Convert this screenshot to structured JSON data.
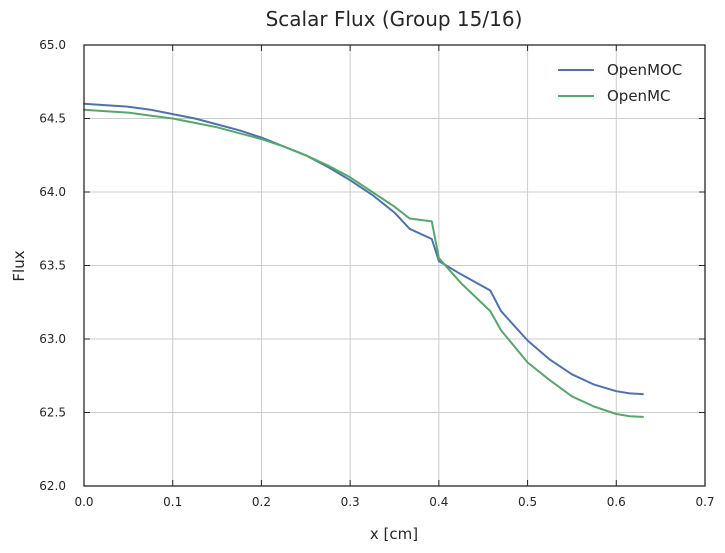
{
  "chart_data": {
    "type": "line",
    "title": "Scalar Flux (Group 15/16)",
    "xlabel": "x [cm]",
    "ylabel": "Flux",
    "xlim": [
      0.0,
      0.7
    ],
    "ylim": [
      62.0,
      65.0
    ],
    "xticks": [
      0.0,
      0.1,
      0.2,
      0.3,
      0.4,
      0.5,
      0.6,
      0.7
    ],
    "yticks": [
      62.0,
      62.5,
      63.0,
      63.5,
      64.0,
      64.5,
      65.0
    ],
    "xtick_labels": [
      "0.0",
      "0.1",
      "0.2",
      "0.3",
      "0.4",
      "0.5",
      "0.6",
      "0.7"
    ],
    "ytick_labels": [
      "62.0",
      "62.5",
      "63.0",
      "63.5",
      "64.0",
      "64.5",
      "65.0"
    ],
    "grid": true,
    "legend_position": "top-right",
    "series": [
      {
        "name": "OpenMOC",
        "color": "#4c72b0",
        "x": [
          0.0,
          0.025,
          0.05,
          0.075,
          0.1,
          0.125,
          0.15,
          0.175,
          0.2,
          0.225,
          0.25,
          0.275,
          0.3,
          0.325,
          0.35,
          0.367,
          0.392,
          0.4,
          0.425,
          0.458,
          0.47,
          0.5,
          0.525,
          0.55,
          0.575,
          0.6,
          0.615,
          0.63
        ],
        "y": [
          64.6,
          64.59,
          64.58,
          64.56,
          64.53,
          64.5,
          64.46,
          64.42,
          64.37,
          64.31,
          64.25,
          64.17,
          64.08,
          63.98,
          63.86,
          63.75,
          63.68,
          63.53,
          63.44,
          63.33,
          63.19,
          62.99,
          62.86,
          62.76,
          62.69,
          62.645,
          62.63,
          62.625
        ]
      },
      {
        "name": "OpenMC",
        "color": "#55a868",
        "x": [
          0.0,
          0.025,
          0.05,
          0.075,
          0.1,
          0.125,
          0.15,
          0.175,
          0.2,
          0.225,
          0.25,
          0.275,
          0.3,
          0.325,
          0.35,
          0.367,
          0.392,
          0.4,
          0.425,
          0.458,
          0.47,
          0.5,
          0.525,
          0.55,
          0.575,
          0.6,
          0.615,
          0.63
        ],
        "y": [
          64.56,
          64.55,
          64.54,
          64.52,
          64.5,
          64.47,
          64.44,
          64.4,
          64.36,
          64.31,
          64.25,
          64.18,
          64.1,
          64.0,
          63.9,
          63.82,
          63.8,
          63.55,
          63.38,
          63.19,
          63.06,
          62.84,
          62.72,
          62.61,
          62.54,
          62.49,
          62.475,
          62.47
        ]
      }
    ]
  }
}
